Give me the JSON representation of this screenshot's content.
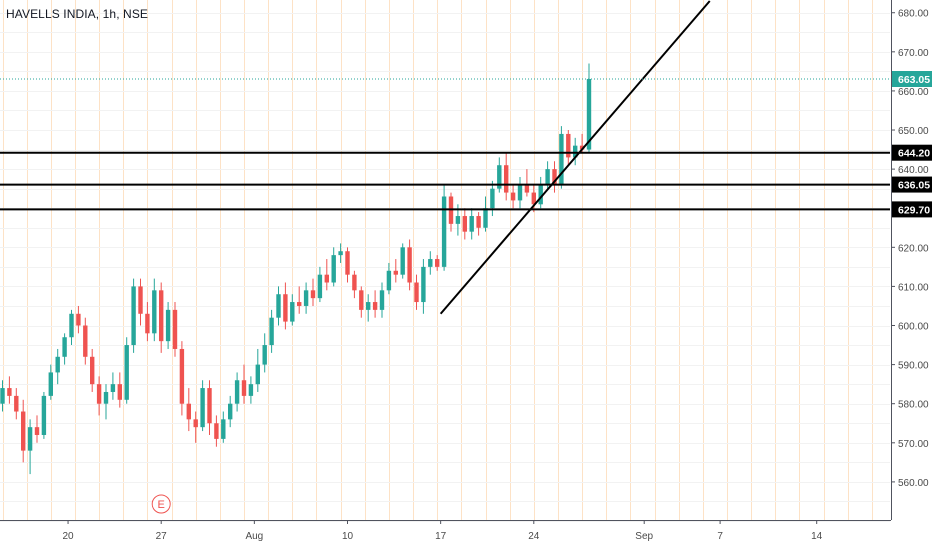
{
  "chart_data": {
    "type": "candlestick",
    "title": "HAVELLS INDIA, 1h, NSE",
    "ylim": [
      550,
      683
    ],
    "y_ticks": [
      560,
      570,
      580,
      590,
      600,
      610,
      620,
      640,
      650,
      660,
      670,
      680
    ],
    "y_tick_labels": [
      "560.00",
      "570.00",
      "580.00",
      "590.00",
      "600.00",
      "610.00",
      "620.00",
      "640.00",
      "650.00",
      "660.00",
      "670.00",
      "680.00"
    ],
    "x_labels": [
      {
        "label": "20",
        "bar": 9.5
      },
      {
        "label": "27",
        "bar": 23
      },
      {
        "label": "Aug",
        "bar": 36.5
      },
      {
        "label": "10",
        "bar": 50
      },
      {
        "label": "17",
        "bar": 63.5
      },
      {
        "label": "24",
        "bar": 77
      },
      {
        "label": "Sep",
        "bar": 93
      },
      {
        "label": "7",
        "bar": 104
      },
      {
        "label": "14",
        "bar": 118
      }
    ],
    "grid": true,
    "last_price": {
      "value": 663.05,
      "label": "663.05",
      "color": "#26a69a"
    },
    "horizontal_levels": [
      {
        "value": 644.2,
        "label": "644.20"
      },
      {
        "value": 636.05,
        "label": "636.05"
      },
      {
        "value": 629.7,
        "label": "629.70"
      }
    ],
    "trendline": {
      "from": {
        "bar": 63.5,
        "price": 603
      },
      "to": {
        "bar": 102.5,
        "price": 683
      }
    },
    "event_marker": {
      "label": "E",
      "bar": 23
    },
    "up_color": "#26a69a",
    "down_color": "#ef5350",
    "candles": [
      {
        "o": 580,
        "h": 586,
        "l": 578,
        "c": 584
      },
      {
        "o": 584,
        "h": 587,
        "l": 580,
        "c": 582
      },
      {
        "o": 582,
        "h": 584,
        "l": 576,
        "c": 578
      },
      {
        "o": 578,
        "h": 581,
        "l": 565,
        "c": 568
      },
      {
        "o": 568,
        "h": 576,
        "l": 562,
        "c": 574
      },
      {
        "o": 574,
        "h": 577,
        "l": 570,
        "c": 572
      },
      {
        "o": 572,
        "h": 583,
        "l": 571,
        "c": 582
      },
      {
        "o": 582,
        "h": 590,
        "l": 581,
        "c": 588
      },
      {
        "o": 588,
        "h": 594,
        "l": 585,
        "c": 592
      },
      {
        "o": 592,
        "h": 598,
        "l": 590,
        "c": 597
      },
      {
        "o": 597,
        "h": 604,
        "l": 595,
        "c": 603
      },
      {
        "o": 603,
        "h": 605,
        "l": 598,
        "c": 600
      },
      {
        "o": 600,
        "h": 602,
        "l": 590,
        "c": 592
      },
      {
        "o": 592,
        "h": 594,
        "l": 583,
        "c": 585
      },
      {
        "o": 585,
        "h": 587,
        "l": 577,
        "c": 580
      },
      {
        "o": 580,
        "h": 585,
        "l": 576,
        "c": 583
      },
      {
        "o": 583,
        "h": 588,
        "l": 581,
        "c": 585
      },
      {
        "o": 585,
        "h": 588,
        "l": 579,
        "c": 581
      },
      {
        "o": 581,
        "h": 597,
        "l": 580,
        "c": 595
      },
      {
        "o": 595,
        "h": 612,
        "l": 593,
        "c": 610
      },
      {
        "o": 610,
        "h": 612,
        "l": 600,
        "c": 603
      },
      {
        "o": 603,
        "h": 606,
        "l": 596,
        "c": 598
      },
      {
        "o": 598,
        "h": 612,
        "l": 596,
        "c": 609
      },
      {
        "o": 609,
        "h": 611,
        "l": 593,
        "c": 596
      },
      {
        "o": 596,
        "h": 606,
        "l": 594,
        "c": 604
      },
      {
        "o": 604,
        "h": 606,
        "l": 592,
        "c": 594
      },
      {
        "o": 594,
        "h": 596,
        "l": 577,
        "c": 580
      },
      {
        "o": 580,
        "h": 584,
        "l": 573,
        "c": 576
      },
      {
        "o": 576,
        "h": 578,
        "l": 570,
        "c": 574
      },
      {
        "o": 574,
        "h": 586,
        "l": 573,
        "c": 584
      },
      {
        "o": 584,
        "h": 586,
        "l": 572,
        "c": 575
      },
      {
        "o": 575,
        "h": 577,
        "l": 569,
        "c": 571
      },
      {
        "o": 571,
        "h": 578,
        "l": 570,
        "c": 576
      },
      {
        "o": 576,
        "h": 582,
        "l": 574,
        "c": 580
      },
      {
        "o": 580,
        "h": 588,
        "l": 578,
        "c": 586
      },
      {
        "o": 586,
        "h": 590,
        "l": 580,
        "c": 582
      },
      {
        "o": 582,
        "h": 587,
        "l": 580,
        "c": 585
      },
      {
        "o": 585,
        "h": 594,
        "l": 583,
        "c": 590
      },
      {
        "o": 590,
        "h": 598,
        "l": 588,
        "c": 595
      },
      {
        "o": 595,
        "h": 604,
        "l": 593,
        "c": 602
      },
      {
        "o": 602,
        "h": 610,
        "l": 600,
        "c": 608
      },
      {
        "o": 608,
        "h": 611,
        "l": 599,
        "c": 601
      },
      {
        "o": 601,
        "h": 608,
        "l": 600,
        "c": 606
      },
      {
        "o": 606,
        "h": 610,
        "l": 603,
        "c": 605
      },
      {
        "o": 605,
        "h": 611,
        "l": 603,
        "c": 609
      },
      {
        "o": 609,
        "h": 612,
        "l": 605,
        "c": 607
      },
      {
        "o": 607,
        "h": 615,
        "l": 606,
        "c": 613
      },
      {
        "o": 613,
        "h": 617,
        "l": 609,
        "c": 611
      },
      {
        "o": 611,
        "h": 620,
        "l": 610,
        "c": 618
      },
      {
        "o": 618,
        "h": 621,
        "l": 616,
        "c": 619
      },
      {
        "o": 619,
        "h": 620,
        "l": 611,
        "c": 613
      },
      {
        "o": 613,
        "h": 614,
        "l": 607,
        "c": 609
      },
      {
        "o": 609,
        "h": 610,
        "l": 602,
        "c": 604
      },
      {
        "o": 604,
        "h": 608,
        "l": 601,
        "c": 606
      },
      {
        "o": 606,
        "h": 609,
        "l": 602,
        "c": 604
      },
      {
        "o": 604,
        "h": 611,
        "l": 602,
        "c": 609
      },
      {
        "o": 609,
        "h": 616,
        "l": 608,
        "c": 614
      },
      {
        "o": 614,
        "h": 617,
        "l": 611,
        "c": 613
      },
      {
        "o": 613,
        "h": 621,
        "l": 612,
        "c": 620
      },
      {
        "o": 620,
        "h": 622,
        "l": 609,
        "c": 611
      },
      {
        "o": 611,
        "h": 613,
        "l": 604,
        "c": 606
      },
      {
        "o": 606,
        "h": 617,
        "l": 603,
        "c": 615
      },
      {
        "o": 615,
        "h": 619,
        "l": 613,
        "c": 617
      },
      {
        "o": 617,
        "h": 618,
        "l": 614,
        "c": 615
      },
      {
        "o": 615,
        "h": 636,
        "l": 614,
        "c": 633
      },
      {
        "o": 633,
        "h": 634,
        "l": 624,
        "c": 626
      },
      {
        "o": 626,
        "h": 631,
        "l": 623,
        "c": 628
      },
      {
        "o": 628,
        "h": 630,
        "l": 622,
        "c": 624
      },
      {
        "o": 624,
        "h": 630,
        "l": 622,
        "c": 628
      },
      {
        "o": 628,
        "h": 629,
        "l": 623,
        "c": 625
      },
      {
        "o": 625,
        "h": 633,
        "l": 624,
        "c": 630
      },
      {
        "o": 630,
        "h": 637,
        "l": 628,
        "c": 635
      },
      {
        "o": 635,
        "h": 643,
        "l": 634,
        "c": 641
      },
      {
        "o": 641,
        "h": 644,
        "l": 632,
        "c": 634
      },
      {
        "o": 634,
        "h": 636,
        "l": 630,
        "c": 632
      },
      {
        "o": 632,
        "h": 638,
        "l": 630,
        "c": 636
      },
      {
        "o": 636,
        "h": 640,
        "l": 633,
        "c": 634
      },
      {
        "o": 634,
        "h": 636,
        "l": 629,
        "c": 631
      },
      {
        "o": 631,
        "h": 638,
        "l": 630,
        "c": 636
      },
      {
        "o": 636,
        "h": 642,
        "l": 635,
        "c": 640
      },
      {
        "o": 640,
        "h": 642,
        "l": 634,
        "c": 636
      },
      {
        "o": 636,
        "h": 651,
        "l": 635,
        "c": 649
      },
      {
        "o": 649,
        "h": 650,
        "l": 641,
        "c": 643
      },
      {
        "o": 643,
        "h": 648,
        "l": 641,
        "c": 646
      },
      {
        "o": 646,
        "h": 649,
        "l": 644,
        "c": 645
      },
      {
        "o": 645,
        "h": 667,
        "l": 644,
        "c": 663.05
      }
    ]
  }
}
